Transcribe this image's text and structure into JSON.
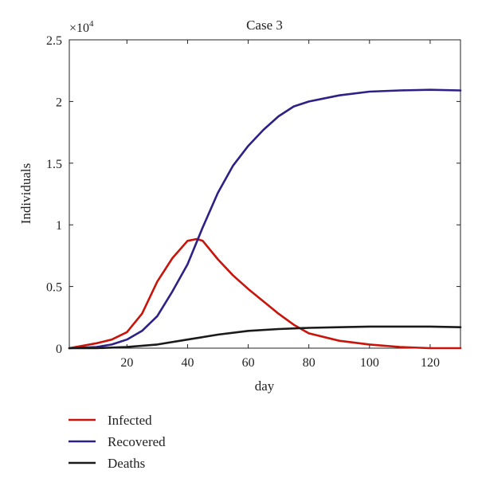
{
  "chart_data": {
    "type": "line",
    "title": "Case 3",
    "xlabel": "day",
    "ylabel": "Individuals",
    "scale_label": {
      "base": "×10",
      "exponent": "4"
    },
    "xlim": [
      1,
      130
    ],
    "ylim": [
      0,
      2.5
    ],
    "x_ticks": [
      20,
      40,
      60,
      80,
      100,
      120
    ],
    "x_tick_labels": [
      "20",
      "40",
      "60",
      "80",
      "100",
      "120"
    ],
    "y_ticks": [
      0,
      0.5,
      1,
      1.5,
      2,
      2.5
    ],
    "y_tick_labels": [
      "0",
      "0.5",
      "1",
      "1.5",
      "2",
      "2.5"
    ],
    "grid": false,
    "legend_position": "bottom-left",
    "series": [
      {
        "name": "Infected",
        "color": "#c8140a",
        "x": [
          1,
          10,
          15,
          20,
          25,
          30,
          35,
          40,
          43,
          45,
          50,
          55,
          60,
          65,
          70,
          75,
          80,
          90,
          100,
          110,
          120,
          130
        ],
        "y": [
          0.0,
          0.04,
          0.07,
          0.13,
          0.28,
          0.54,
          0.73,
          0.87,
          0.885,
          0.87,
          0.72,
          0.59,
          0.48,
          0.38,
          0.28,
          0.19,
          0.12,
          0.06,
          0.03,
          0.01,
          0.0,
          0.0
        ]
      },
      {
        "name": "Recovered",
        "color": "#2d2086",
        "x": [
          1,
          10,
          15,
          20,
          25,
          30,
          35,
          40,
          45,
          50,
          55,
          60,
          65,
          70,
          75,
          80,
          90,
          100,
          110,
          120,
          130
        ],
        "y": [
          0.0,
          0.01,
          0.03,
          0.07,
          0.14,
          0.26,
          0.46,
          0.68,
          0.98,
          1.26,
          1.48,
          1.64,
          1.77,
          1.88,
          1.96,
          2.0,
          2.05,
          2.08,
          2.09,
          2.095,
          2.09
        ]
      },
      {
        "name": "Deaths",
        "color": "#1a1a1a",
        "x": [
          1,
          10,
          20,
          30,
          40,
          50,
          60,
          70,
          80,
          90,
          100,
          110,
          120,
          130
        ],
        "y": [
          0.0,
          0.0,
          0.01,
          0.03,
          0.07,
          0.11,
          0.14,
          0.155,
          0.165,
          0.17,
          0.175,
          0.175,
          0.175,
          0.17
        ]
      }
    ]
  }
}
